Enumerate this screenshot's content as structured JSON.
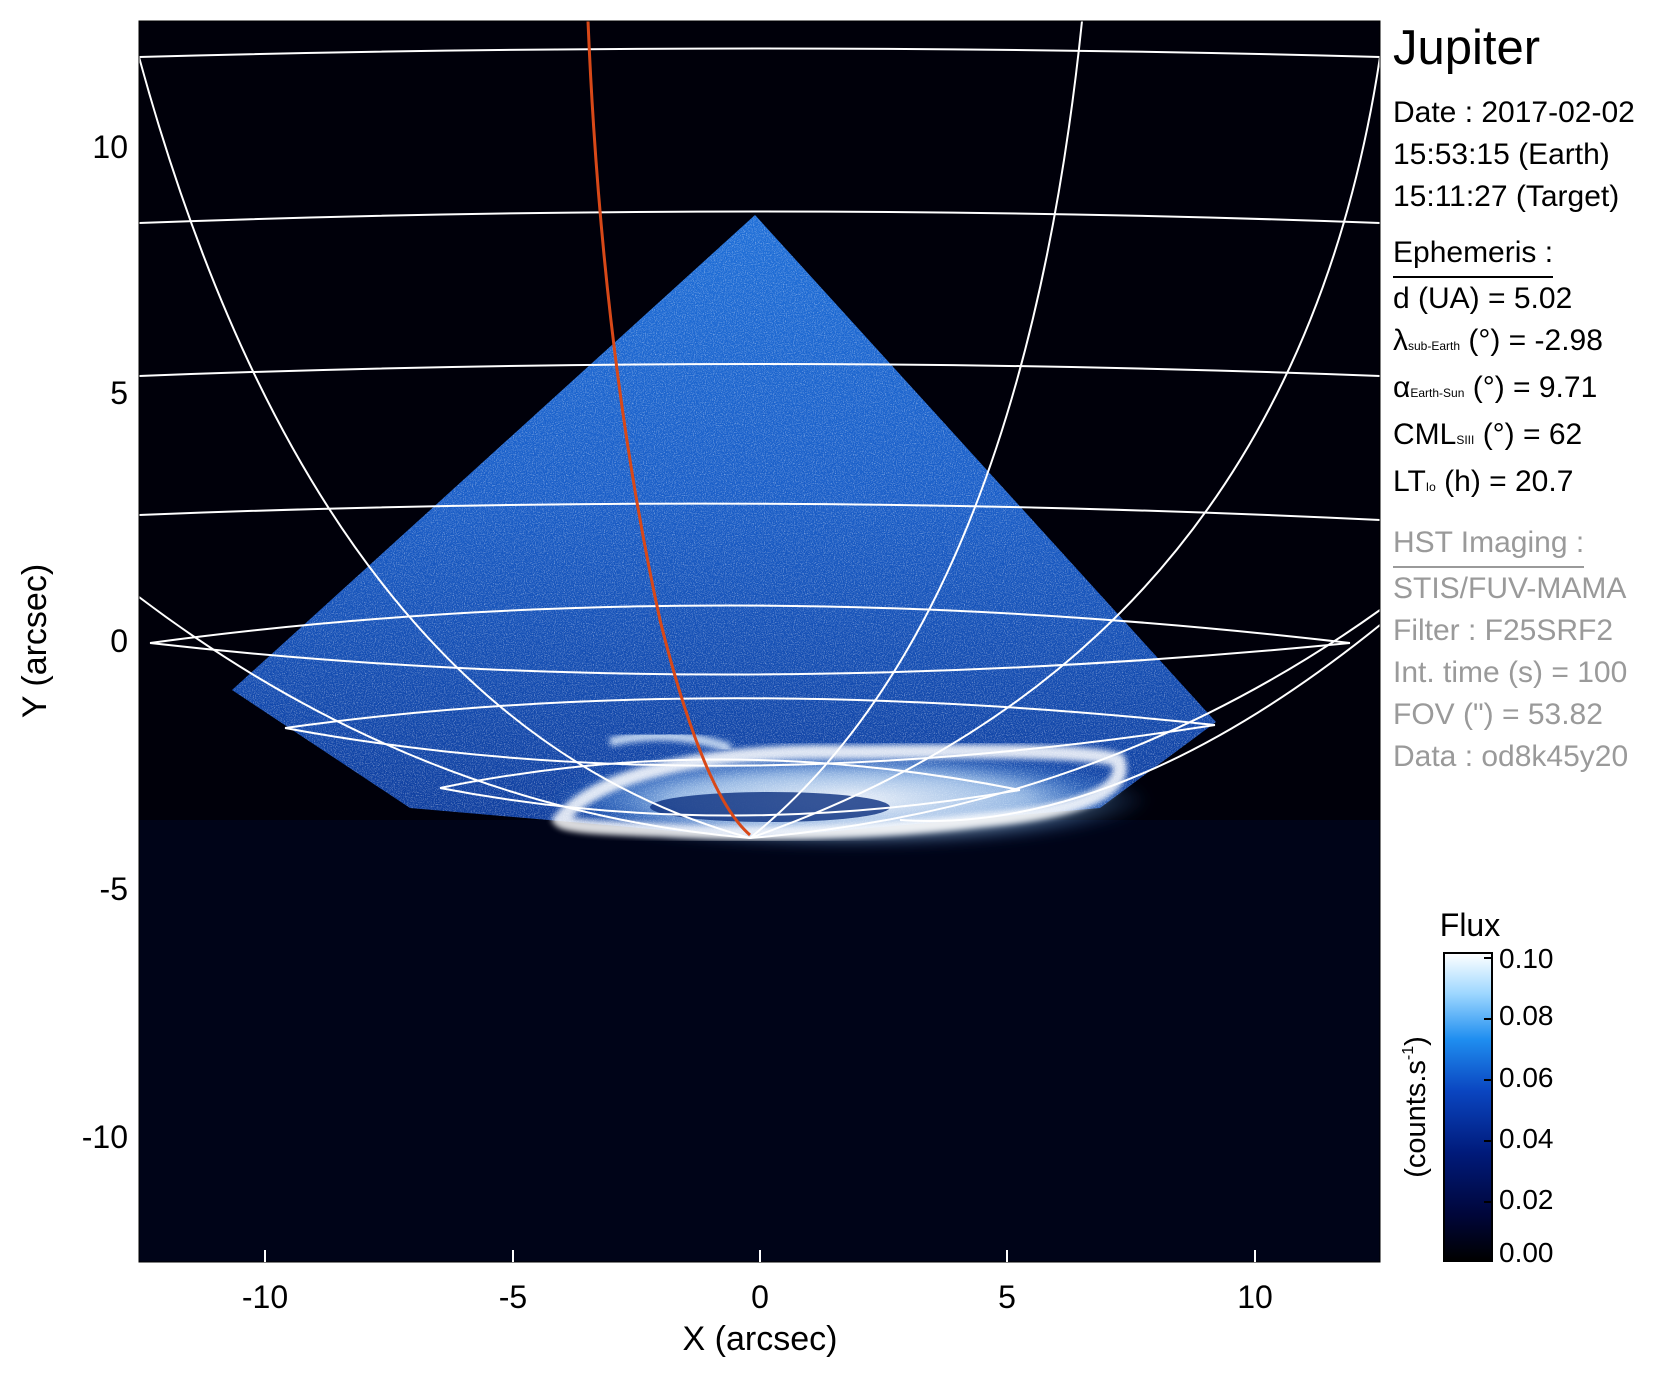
{
  "plot": {
    "x_axis_label": "X (arcsec)",
    "y_axis_label": "Y (arcsec)",
    "x_ticks": [
      "-10",
      "-5",
      "0",
      "5",
      "10"
    ],
    "y_ticks": [
      "10",
      "5",
      "0",
      "-5",
      "-10"
    ]
  },
  "info": {
    "title": "Jupiter",
    "date_line": "Date : 2017-02-02",
    "earth_time": "15:53:15 (Earth)",
    "target_time": "15:11:27 (Target)",
    "ephemeris_header": "Ephemeris :",
    "distance": "d (UA)    = 5.02",
    "lambda_symbol": "λ",
    "lambda_sub": "sub-Earth",
    "lambda_rest": " (°) = -2.98",
    "alpha_symbol": "α",
    "alpha_sub": "Earth-Sun",
    "alpha_rest": " (°) = 9.71",
    "cml_symbol": "CML",
    "cml_sub": "SIII",
    "cml_rest": " (°) = 62",
    "lt_symbol": "LT",
    "lt_sub": "Io",
    "lt_rest": " (h) = 20.7",
    "hst_header": "HST Imaging :",
    "instrument": "STIS/FUV-MAMA",
    "filter": "Filter : F25SRF2",
    "int_time": "Int. time (s) = 100",
    "fov": "FOV (\") = 53.82",
    "data_id": "Data : od8k45y20"
  },
  "colorbar": {
    "title": "Flux",
    "unit_label": "(counts.s",
    "unit_sup": "-1",
    "unit_close": ")",
    "ticks": [
      "0.10",
      "0.08",
      "0.06",
      "0.04",
      "0.02",
      "0.00"
    ],
    "colors": [
      "#000000",
      "#00063a",
      "#001a7a",
      "#0a45c0",
      "#1f8ef0",
      "#9fd8ff",
      "#ffffff"
    ]
  },
  "image_colors": {
    "background": "#00000a",
    "footpoint_track": "#d84818",
    "grid": "#ffffff"
  }
}
